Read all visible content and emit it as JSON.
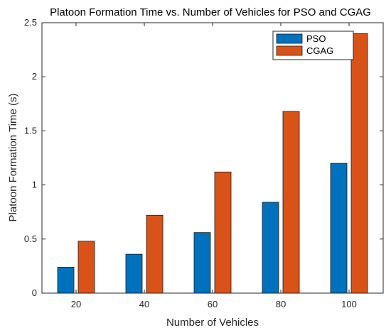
{
  "chart_data": {
    "type": "bar",
    "title": "Platoon Formation Time vs. Number of Vehicles for PSO and CGAG",
    "xlabel": "Number of Vehicles",
    "ylabel": "Platoon Formation Time (s)",
    "categories": [
      "20",
      "40",
      "60",
      "80",
      "100"
    ],
    "series": [
      {
        "name": "PSO",
        "values": [
          0.24,
          0.36,
          0.56,
          0.84,
          1.2
        ],
        "color": "#0072BD"
      },
      {
        "name": "CGAG",
        "values": [
          0.48,
          0.72,
          1.12,
          1.68,
          2.4
        ],
        "color": "#D95319"
      }
    ],
    "ylim": [
      0,
      2.5
    ],
    "yticks": [
      "0",
      "0.5",
      "1",
      "1.5",
      "2",
      "2.5"
    ],
    "grid": false,
    "legend_position": "top-right"
  }
}
